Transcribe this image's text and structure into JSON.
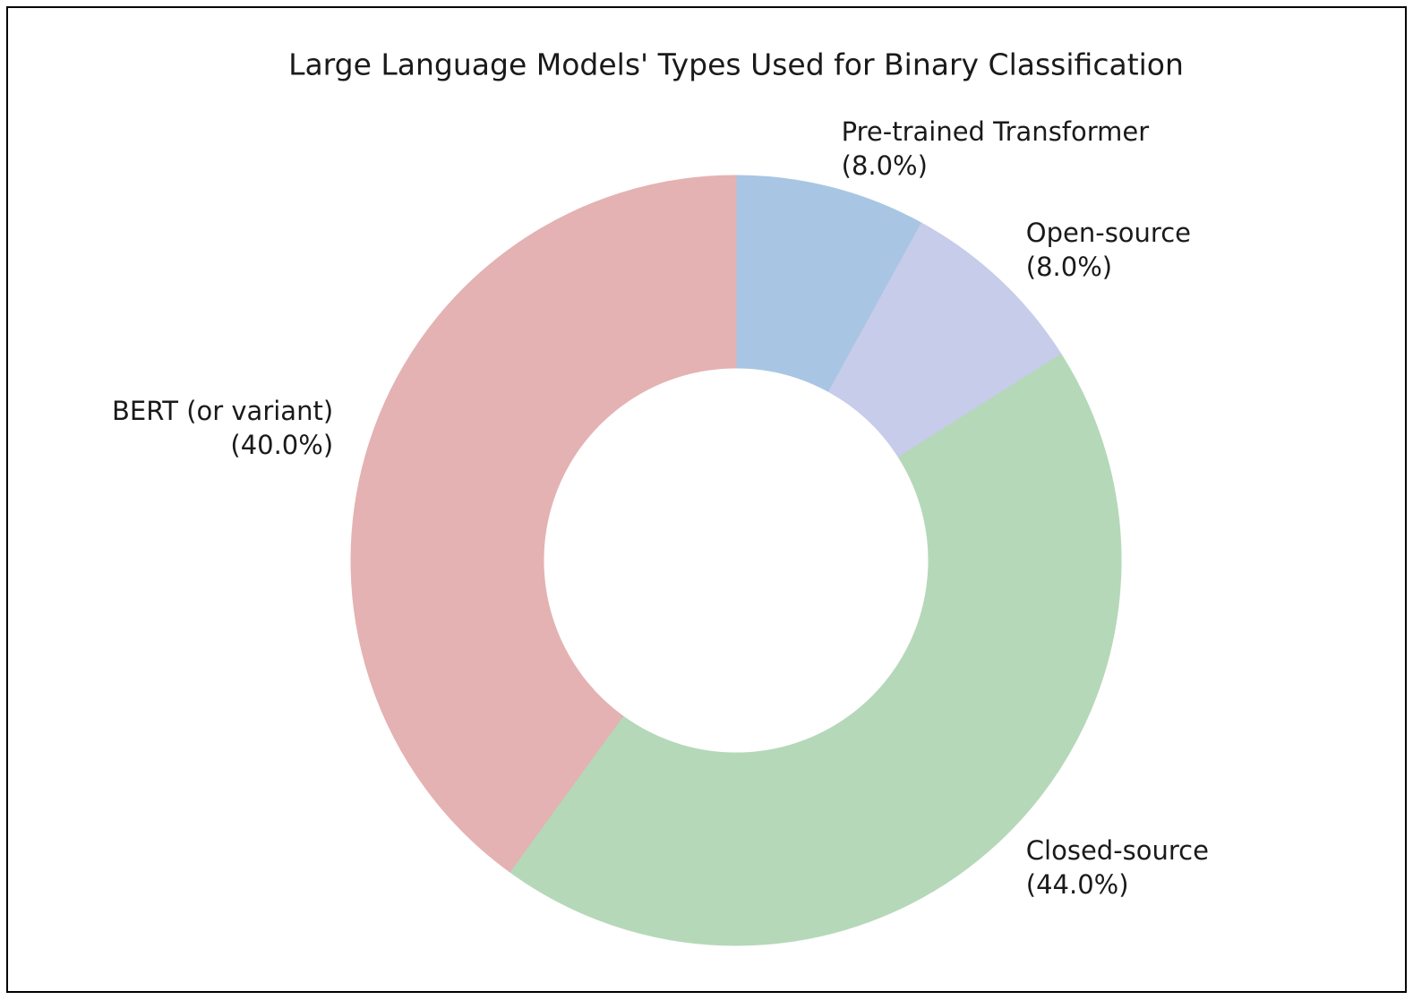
{
  "chart_data": {
    "type": "pie",
    "title": "Large Language Models' Types Used for Binary Classification",
    "categories": [
      "Pre-trained Transformer",
      "Open-source",
      "Closed-source",
      "BERT (or variant)"
    ],
    "values": [
      8.0,
      8.0,
      44.0,
      40.0
    ],
    "value_labels": [
      "(8.0%)",
      "(8.0%)",
      "(44.0%)",
      "(40.0%)"
    ],
    "colors": [
      "#a8c6e4",
      "#c6cce9",
      "#b5d8b9",
      "#e4b2b2"
    ],
    "donut": true
  }
}
